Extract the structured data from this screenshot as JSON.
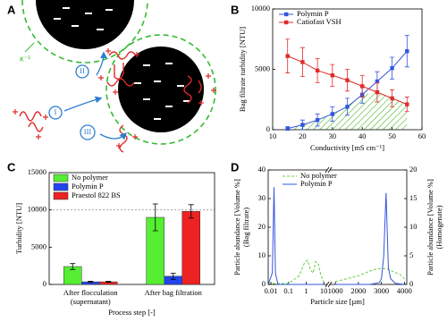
{
  "diagram": {
    "label": "A",
    "debye_length": "κ⁻¹",
    "steps": [
      "I",
      "II",
      "III"
    ]
  },
  "chart_data": [
    {
      "type": "line",
      "panel_label": "B",
      "x_label": "Conductivity [mS cm⁻¹]",
      "y_label": "Bag filtrate turbidity [NTU]",
      "x": [
        15,
        20,
        25,
        30,
        35,
        40,
        45,
        50,
        55
      ],
      "xlim": [
        10,
        60
      ],
      "xticks": [
        10,
        20,
        30,
        40,
        50,
        60
      ],
      "ylim": [
        0,
        10000
      ],
      "yticks": [
        0,
        5000,
        10000
      ],
      "legend": "upper left",
      "shade": "hatch",
      "series": [
        {
          "name": "Polymin P",
          "color": "#3355dd",
          "marker": "square",
          "values": [
            100,
            400,
            800,
            1300,
            1900,
            2900,
            4000,
            5100,
            6500
          ],
          "errors": [
            150,
            400,
            500,
            600,
            700,
            700,
            800,
            900,
            1300
          ]
        },
        {
          "name": "Catiofast VSH",
          "color": "#e02b2b",
          "marker": "square",
          "values": [
            6100,
            5600,
            4900,
            4500,
            4100,
            3600,
            3100,
            2600,
            2100
          ],
          "errors": [
            1400,
            1200,
            1000,
            900,
            900,
            900,
            800,
            700,
            600
          ]
        }
      ]
    },
    {
      "type": "bar",
      "panel_label": "C",
      "x_label": "Process step [-]",
      "y_label": "Turbidity [NTU]",
      "categories": [
        [
          "After flocculation",
          "(supernatant)"
        ],
        [
          "After bag filtration"
        ]
      ],
      "ylim": [
        0,
        15000
      ],
      "yticks": [
        0,
        5000,
        10000,
        15000
      ],
      "reference_line": 10000,
      "legend": "upper left",
      "series": [
        {
          "name": "No polymer",
          "color": "#55ee33",
          "values": [
            2400,
            9000
          ],
          "errors": [
            400,
            1800
          ]
        },
        {
          "name": "Polymin P",
          "color": "#2244ee",
          "values": [
            350,
            1100
          ],
          "errors": [
            80,
            400
          ]
        },
        {
          "name": "Praestol 822 BS",
          "color": "#ee2222",
          "values": [
            350,
            9800
          ],
          "errors": [
            60,
            900
          ]
        }
      ]
    },
    {
      "type": "line",
      "panel_label": "D",
      "x_label": "Particle size [µm]",
      "y_label": [
        "Particle abundance [Volume %]",
        "(Bag filtrate)"
      ],
      "y2_label": [
        "Particle abundance [Volume %]",
        "(Homogenate)"
      ],
      "x_segments": [
        {
          "xlim": [
            0.007,
            14
          ],
          "log": true,
          "xticks": [
            0.01,
            0.1,
            1,
            10
          ]
        },
        {
          "xlim": [
            800,
            4100
          ],
          "log": false,
          "xticks": [
            1000,
            2000,
            3000,
            4000
          ]
        }
      ],
      "ylim": [
        0,
        40
      ],
      "yticks": [
        0,
        10,
        20,
        30,
        40
      ],
      "y2lim": [
        0,
        20
      ],
      "y2ticks": [
        0,
        5,
        10,
        15,
        20
      ],
      "legend": "upper left",
      "series": [
        {
          "name": "No polymer",
          "color": "#66cc44",
          "dash": "dash",
          "x": [
            0.007,
            0.1,
            0.4,
            0.8,
            1.2,
            1.8,
            2.5,
            3.5,
            5,
            7,
            10,
            null,
            1000,
            1500,
            2000,
            2300,
            2600,
            2900,
            3200,
            3500,
            3800,
            4000
          ],
          "values": [
            0.3,
            0.3,
            3,
            7.5,
            8.5,
            5,
            4,
            8,
            7,
            3,
            1,
            null,
            1,
            2,
            3,
            4,
            5,
            5.5,
            5.5,
            4.5,
            3.5,
            2
          ]
        },
        {
          "name": "Polymin P",
          "color": "#3355dd",
          "axis": "y2",
          "x": [
            0.007,
            0.012,
            0.015,
            0.018,
            0.025,
            0.05,
            0.5,
            10,
            null,
            1000,
            2500,
            2900,
            3000,
            3100,
            3200,
            3300,
            3400,
            3600,
            4000
          ],
          "values": [
            0,
            2,
            17,
            2,
            0,
            0,
            0,
            0,
            null,
            0,
            0,
            0.3,
            1,
            5,
            16,
            3,
            1,
            0.2,
            0
          ]
        }
      ]
    }
  ]
}
